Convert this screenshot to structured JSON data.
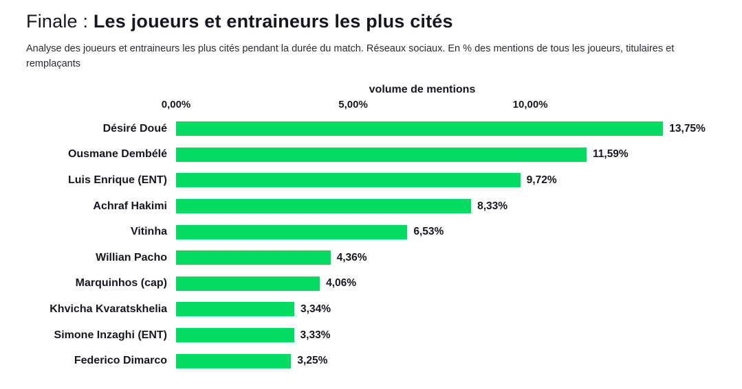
{
  "header": {
    "title_prefix": "Finale : ",
    "title_main": "Les joueurs et entraineurs les plus cités",
    "subtitle": "Analyse des joueurs et entraineurs les plus cités pendant la durée du match. Réseaux sociaux. En % des mentions de tous les joueurs, titulaires et remplaçants"
  },
  "colors": {
    "bar_green": "#04db63",
    "text_dark": "#16161e",
    "subtitle_gray": "#2b2b33"
  },
  "chart_data": {
    "type": "bar",
    "orientation": "horizontal",
    "axis_title": "volume de mentions",
    "categories": [
      "Désiré Doué",
      "Ousmane Dembélé",
      "Luis Enrique (ENT)",
      "Achraf Hakimi",
      "Vitinha",
      "Willian Pacho",
      "Marquinhos (cap)",
      "Khvicha Kvaratskhelia",
      "Simone Inzaghi (ENT)",
      "Federico Dimarco"
    ],
    "values": [
      13.75,
      11.59,
      9.72,
      8.33,
      6.53,
      4.36,
      4.06,
      3.34,
      3.33,
      3.25
    ],
    "value_labels": [
      "13,75%",
      "11,59%",
      "9,72%",
      "8,33%",
      "6,53%",
      "4,36%",
      "4,06%",
      "3,34%",
      "3,33%",
      "3,25%"
    ],
    "x_ticks": [
      {
        "value": 0,
        "label": "0,00%"
      },
      {
        "value": 5,
        "label": "5,00%"
      },
      {
        "value": 10,
        "label": "10,00%"
      }
    ],
    "xlim": [
      0,
      13.9
    ],
    "bar_color": "#04db63",
    "grid": false,
    "legend": "none"
  }
}
